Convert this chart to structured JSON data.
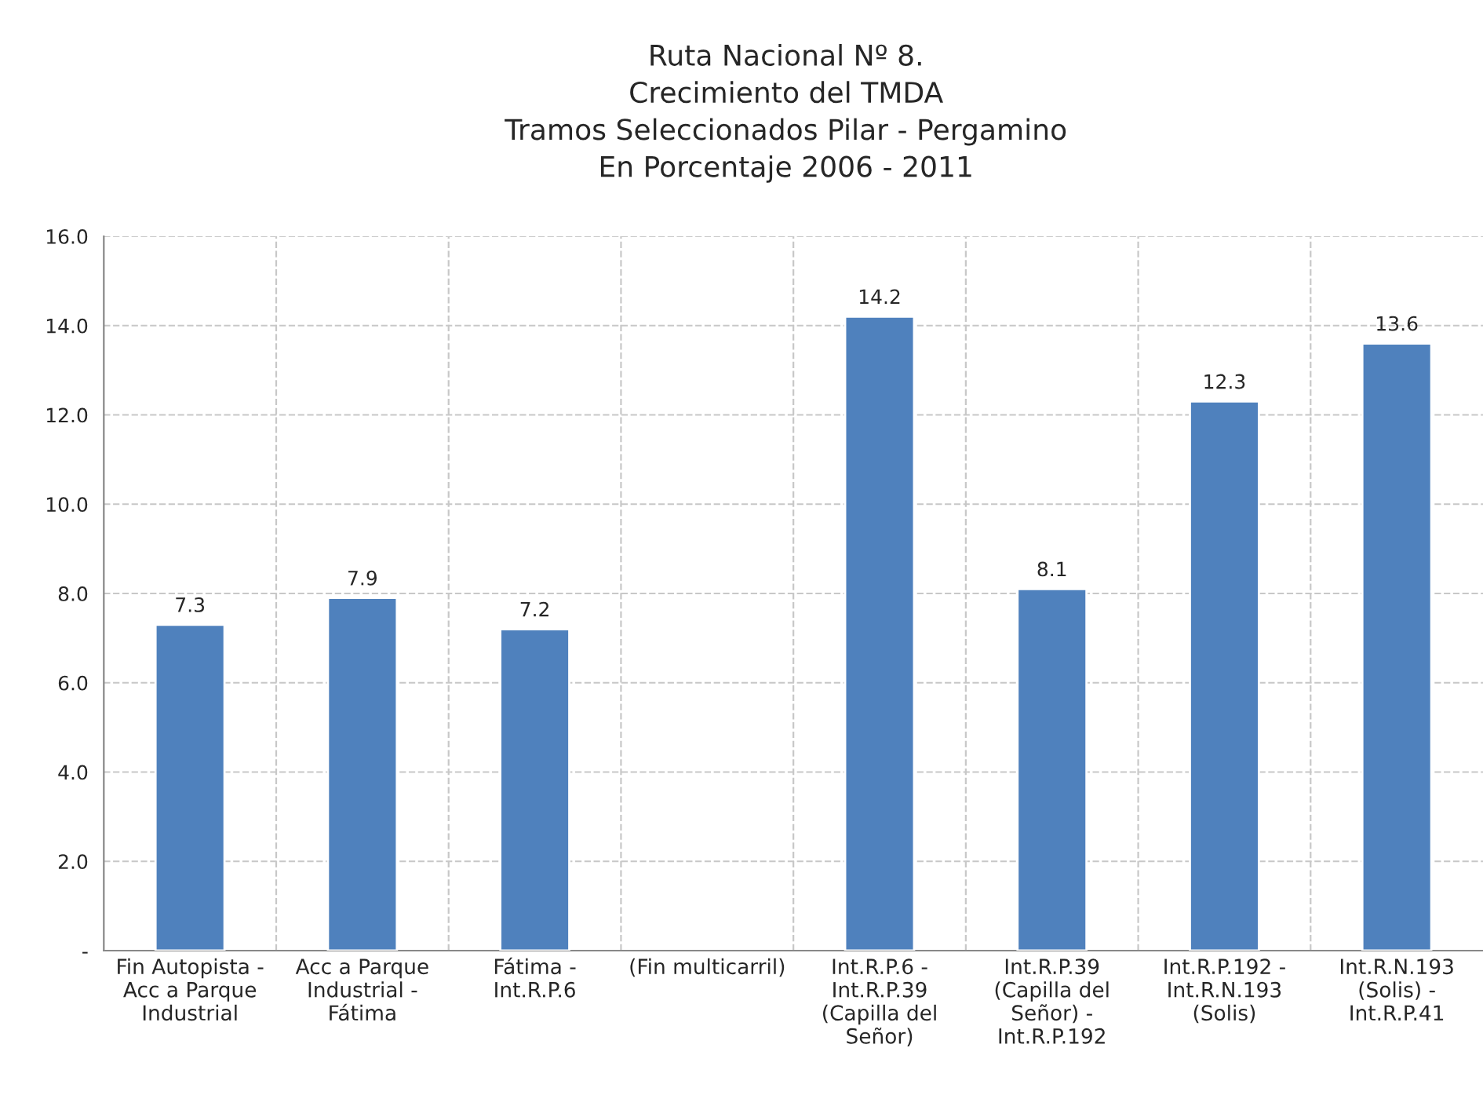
{
  "chart_data": {
    "type": "bar",
    "title": "Ruta Nacional Nº 8.\nCrecimiento del TMDA\nTramos Seleccionados Pilar - Pergamino\nEn Porcentaje 2006 - 2011",
    "categories": [
      "Fin Autopista -\nAcc a Parque\nIndustrial",
      "Acc a Parque\nIndustrial -\nFátima",
      "Fátima -\nInt.R.P.6",
      "(Fin multicarril)",
      "Int.R.P.6 -\nInt.R.P.39\n(Capilla del\nSeñor)",
      "Int.R.P.39\n(Capilla del\nSeñor) -\nInt.R.P.192",
      "Int.R.P.192 -\nInt.R.N.193\n(Solis)",
      "Int.R.N.193\n(Solis) -\nInt.R.P.41"
    ],
    "values": [
      7.3,
      7.9,
      7.2,
      null,
      14.2,
      8.1,
      12.3,
      13.6
    ],
    "color": "#4f81bd",
    "ylim": [
      0,
      16
    ],
    "yticks": [
      {
        "value": 0,
        "label": "-"
      },
      {
        "value": 2,
        "label": "2.0"
      },
      {
        "value": 4,
        "label": "4.0"
      },
      {
        "value": 6,
        "label": "6.0"
      },
      {
        "value": 8,
        "label": "8.0"
      },
      {
        "value": 10,
        "label": "10.0"
      },
      {
        "value": 12,
        "label": "12.0"
      },
      {
        "value": 14,
        "label": "14.0"
      },
      {
        "value": 16,
        "label": "16.0"
      }
    ],
    "grid": true,
    "data_labels": true
  }
}
